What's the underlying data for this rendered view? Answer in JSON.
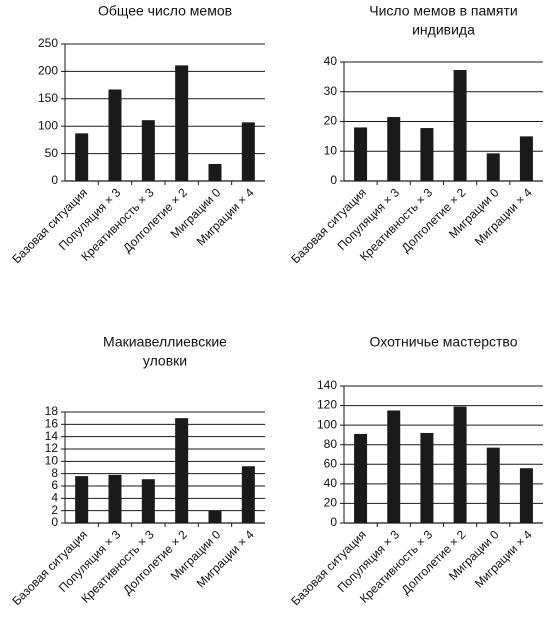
{
  "chart_data": [
    {
      "type": "bar",
      "title": [
        "Общее число мемов"
      ],
      "categories": [
        "Базовая ситуация",
        "Популяция × 3",
        "Креативность × 3",
        "Долголетие × 2",
        "Миграции 0",
        "Миграции × 4"
      ],
      "values": [
        87,
        167,
        111,
        211,
        31,
        107
      ],
      "ylim": [
        0,
        250
      ],
      "yticks": [
        0,
        50,
        100,
        150,
        200,
        250
      ],
      "grid": true,
      "bar_color": "#1a1a1a",
      "xlabel": "",
      "ylabel": ""
    },
    {
      "type": "bar",
      "title": [
        "Число мемов в памяти",
        "индивида"
      ],
      "categories": [
        "Базовая ситуация",
        "Популяция × 3",
        "Креативность × 3",
        "Долголетие × 2",
        "Миграции 0",
        "Миграции × 4"
      ],
      "values": [
        18,
        21.5,
        17.8,
        37.3,
        9.3,
        15
      ],
      "ylim": [
        0,
        40
      ],
      "yticks": [
        0,
        10,
        20,
        30,
        40
      ],
      "grid": true,
      "bar_color": "#1a1a1a",
      "xlabel": "",
      "ylabel": ""
    },
    {
      "type": "bar",
      "title": [
        "Макиавеллиевские",
        "уловки"
      ],
      "categories": [
        "Базовая ситуация",
        "Популяция × 3",
        "Креативность × 3",
        "Долголетие × 2",
        "Миграции 0",
        "Миграции × 4"
      ],
      "values": [
        7.6,
        7.8,
        7.1,
        17,
        2,
        9.2
      ],
      "ylim": [
        0,
        18
      ],
      "yticks": [
        0,
        2,
        4,
        6,
        8,
        10,
        12,
        14,
        16,
        18
      ],
      "grid": true,
      "bar_color": "#1a1a1a",
      "xlabel": "",
      "ylabel": ""
    },
    {
      "type": "bar",
      "title": [
        "Охотничье мастерство"
      ],
      "categories": [
        "Базовая ситуация",
        "Популяция × 3",
        "Креативность × 3",
        "Долголетие × 2",
        "Миграции 0",
        "Миграции × 4"
      ],
      "values": [
        91,
        115,
        92,
        119,
        77,
        56
      ],
      "ylim": [
        0,
        140
      ],
      "yticks": [
        0,
        20,
        40,
        60,
        80,
        100,
        120,
        140
      ],
      "grid": true,
      "bar_color": "#1a1a1a",
      "xlabel": "",
      "ylabel": ""
    }
  ]
}
